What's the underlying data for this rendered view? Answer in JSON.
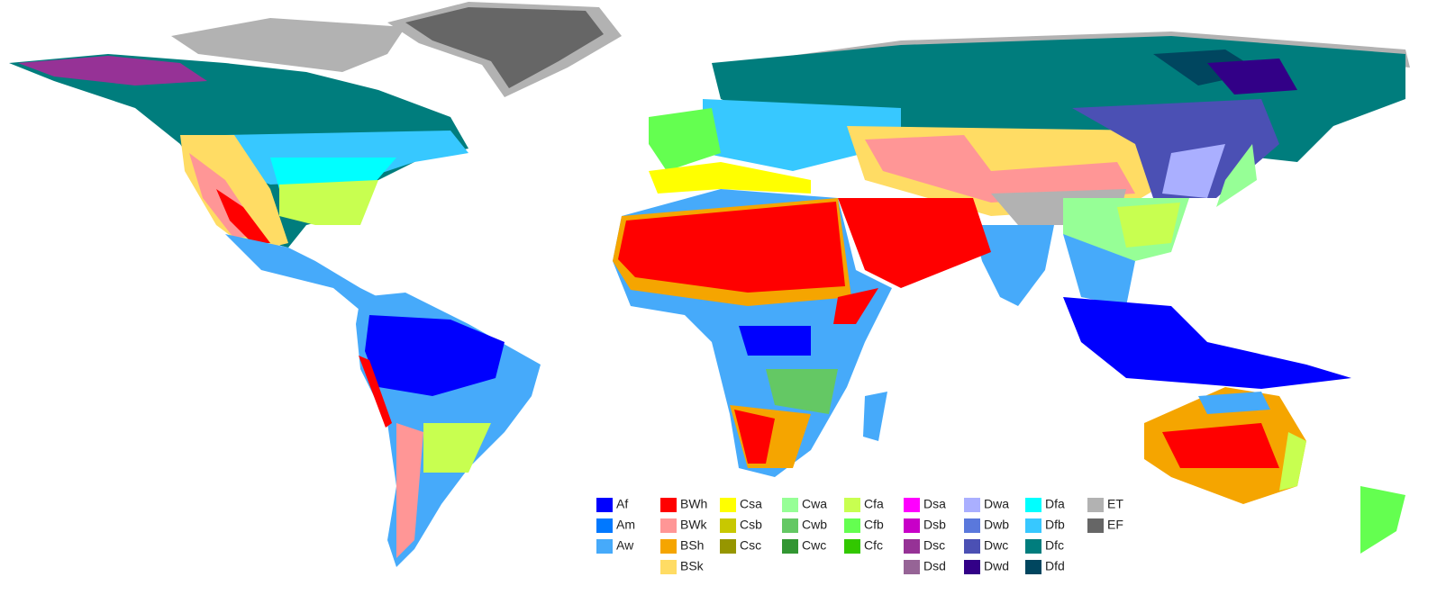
{
  "legend": {
    "columns": [
      [
        {
          "code": "Af",
          "color": "#0000fe"
        },
        {
          "code": "Am",
          "color": "#0078ff"
        },
        {
          "code": "Aw",
          "color": "#46aafa"
        }
      ],
      [
        {
          "code": "BWh",
          "color": "#ff0000"
        },
        {
          "code": "BWk",
          "color": "#ff9696"
        },
        {
          "code": "BSh",
          "color": "#f5a500"
        },
        {
          "code": "BSk",
          "color": "#ffdc64"
        }
      ],
      [
        {
          "code": "Csa",
          "color": "#ffff00"
        },
        {
          "code": "Csb",
          "color": "#c8c800"
        },
        {
          "code": "Csc",
          "color": "#969600"
        }
      ],
      [
        {
          "code": "Cwa",
          "color": "#96ff96"
        },
        {
          "code": "Cwb",
          "color": "#64c864"
        },
        {
          "code": "Cwc",
          "color": "#329632"
        }
      ],
      [
        {
          "code": "Cfa",
          "color": "#c8ff50"
        },
        {
          "code": "Cfb",
          "color": "#64ff50"
        },
        {
          "code": "Cfc",
          "color": "#32c800"
        }
      ],
      [
        {
          "code": "Dsa",
          "color": "#ff00ff"
        },
        {
          "code": "Dsb",
          "color": "#c800c8"
        },
        {
          "code": "Dsc",
          "color": "#963296"
        },
        {
          "code": "Dsd",
          "color": "#966496"
        }
      ],
      [
        {
          "code": "Dwa",
          "color": "#aaafff"
        },
        {
          "code": "Dwb",
          "color": "#5a78dc"
        },
        {
          "code": "Dwc",
          "color": "#4b50b4"
        },
        {
          "code": "Dwd",
          "color": "#320087"
        }
      ],
      [
        {
          "code": "Dfa",
          "color": "#00ffff"
        },
        {
          "code": "Dfb",
          "color": "#37c8ff"
        },
        {
          "code": "Dfc",
          "color": "#007d7d"
        },
        {
          "code": "Dfd",
          "color": "#00465f"
        }
      ],
      [
        {
          "code": "ET",
          "color": "#b2b2b2"
        },
        {
          "code": "EF",
          "color": "#666666"
        }
      ]
    ]
  }
}
